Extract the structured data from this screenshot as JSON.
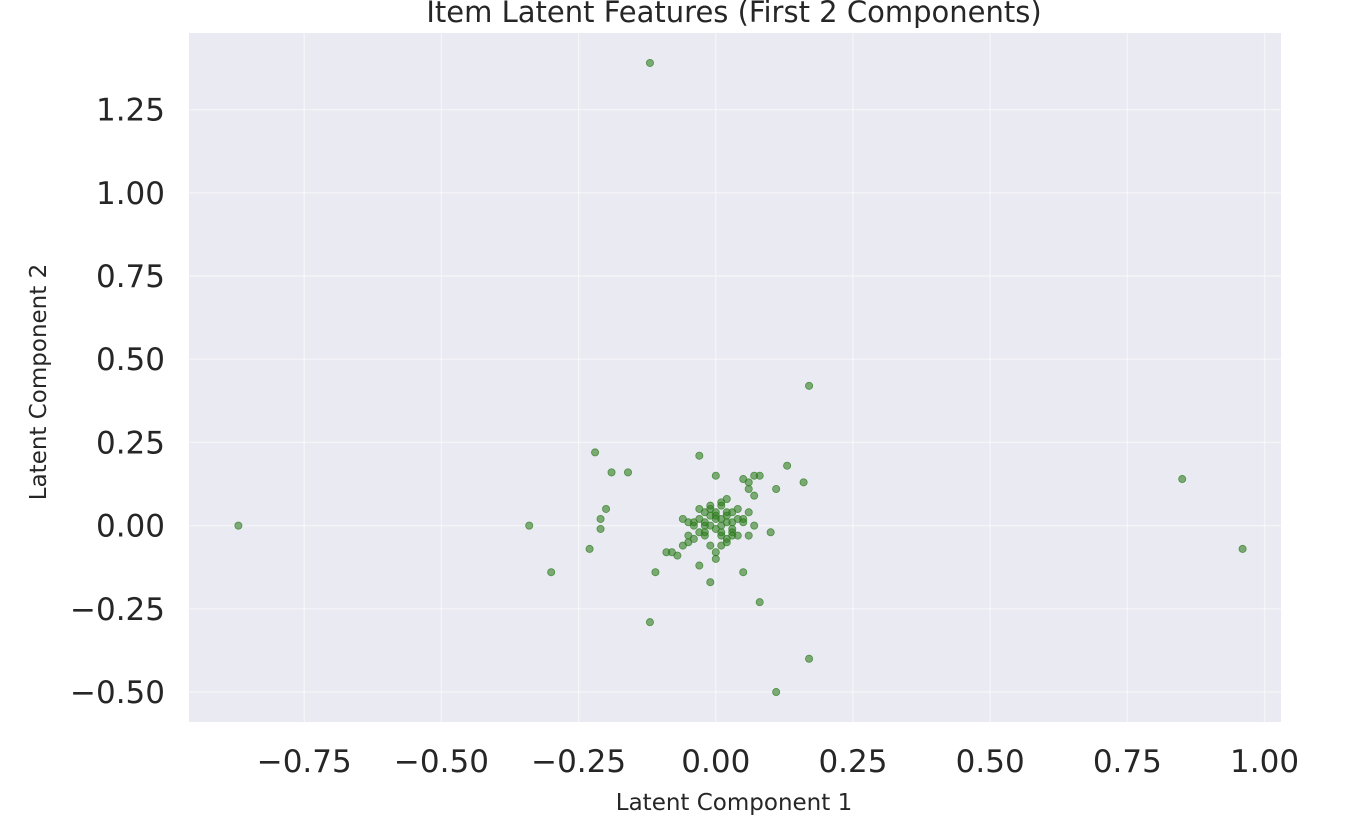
{
  "chart_data": {
    "type": "scatter",
    "title": "Item Latent Features (First 2 Components)",
    "xlabel": "Latent Component 1",
    "ylabel": "Latent Component 2",
    "xlim": [
      -0.96,
      1.03
    ],
    "ylim": [
      -0.59,
      1.48
    ],
    "xticks": [
      -0.75,
      -0.5,
      -0.25,
      0.0,
      0.25,
      0.5,
      0.75,
      1.0
    ],
    "xtick_labels": [
      "−0.75",
      "−0.50",
      "−0.25",
      "0.00",
      "0.25",
      "0.50",
      "0.75",
      "1.00"
    ],
    "yticks": [
      -0.5,
      -0.25,
      0.0,
      0.25,
      0.5,
      0.75,
      1.0,
      1.25
    ],
    "ytick_labels": [
      "−0.50",
      "−0.25",
      "0.00",
      "0.25",
      "0.50",
      "0.75",
      "1.00",
      "1.25"
    ],
    "grid": true,
    "point_color": "#2e7d1f",
    "background_color": "#eaeaf2",
    "series": [
      {
        "x": [
          -0.12,
          0.17,
          -0.87,
          -0.34,
          -0.3,
          -0.23,
          -0.22,
          -0.21,
          -0.21,
          -0.2,
          -0.19,
          -0.16,
          -0.12,
          -0.11,
          -0.09,
          -0.07,
          -0.06,
          -0.05,
          -0.05,
          -0.04,
          -0.03,
          -0.03,
          -0.02,
          -0.02,
          -0.01,
          -0.01,
          0.0,
          0.0,
          0.0,
          0.01,
          0.01,
          0.01,
          0.02,
          0.02,
          0.02,
          0.03,
          0.03,
          0.04,
          0.05,
          0.05,
          0.06,
          0.06,
          0.07,
          0.07,
          0.08,
          0.08,
          0.1,
          0.11,
          0.13,
          0.16,
          0.85,
          0.96,
          0.07,
          0.17,
          0.11,
          -0.01,
          -0.03,
          0.0,
          0.05,
          0.01,
          -0.04,
          0.02,
          -0.02,
          0.03,
          -0.01,
          0.04,
          -0.06,
          0.06,
          0.01,
          -0.02,
          0.0,
          0.02,
          -0.03,
          0.03,
          0.01,
          -0.01,
          0.0,
          0.04,
          -0.04,
          0.02,
          -0.02,
          0.01,
          0.0,
          0.05,
          -0.05,
          -0.08,
          0.06,
          -0.03,
          -0.01,
          0.03
        ],
        "y": [
          1.39,
          0.42,
          0.0,
          0.0,
          -0.14,
          -0.07,
          0.22,
          0.02,
          -0.01,
          0.05,
          0.16,
          0.16,
          -0.29,
          -0.14,
          -0.08,
          -0.09,
          0.02,
          -0.05,
          -0.03,
          0.01,
          0.21,
          0.05,
          -0.02,
          0.04,
          -0.06,
          0.03,
          0.15,
          -0.01,
          0.02,
          0.06,
          -0.03,
          0.0,
          0.04,
          -0.04,
          0.08,
          0.01,
          -0.02,
          0.05,
          -0.14,
          0.14,
          0.11,
          0.13,
          0.09,
          0.15,
          -0.23,
          0.15,
          -0.02,
          0.11,
          0.18,
          0.13,
          0.14,
          -0.07,
          0.0,
          -0.4,
          -0.5,
          -0.17,
          -0.12,
          -0.1,
          0.02,
          0.07,
          -0.04,
          0.03,
          0.0,
          -0.01,
          0.05,
          0.02,
          -0.06,
          -0.03,
          -0.02,
          0.01,
          0.03,
          -0.05,
          0.02,
          0.04,
          -0.06,
          0.06,
          -0.08,
          -0.03,
          0.0,
          0.01,
          -0.03,
          0.02,
          0.04,
          0.01,
          0.01,
          -0.08,
          0.04,
          -0.02,
          0.0,
          -0.03
        ]
      }
    ]
  }
}
